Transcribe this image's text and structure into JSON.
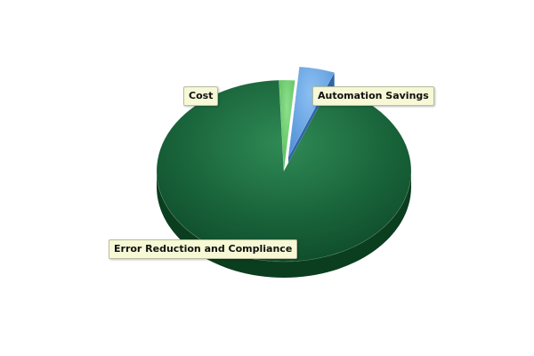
{
  "chart_data": {
    "type": "pie",
    "title": "",
    "style": "3d",
    "slices": [
      {
        "name": "Automation Savings",
        "value": 4.5,
        "color": "#5ea2e6"
      },
      {
        "name": "Error Reduction and Compliance",
        "value": 93.5,
        "color": "#1e6e3c"
      },
      {
        "name": "Cost",
        "value": 2.0,
        "color": "#66cc66"
      }
    ],
    "start_angle_deg": 5,
    "exploded": [
      "Automation Savings"
    ],
    "legend": "none"
  }
}
